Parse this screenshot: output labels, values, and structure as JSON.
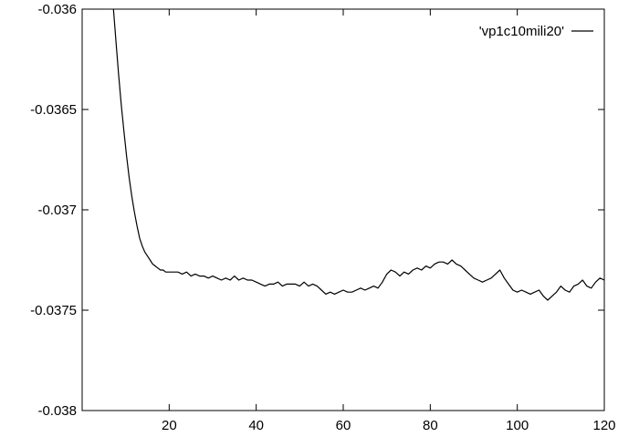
{
  "chart_data": {
    "type": "line",
    "xlim": [
      0,
      120
    ],
    "ylim": [
      -0.038,
      -0.036
    ],
    "x_ticks": [
      "20",
      "40",
      "60",
      "80",
      "100",
      "120"
    ],
    "x_tick_values": [
      20,
      40,
      60,
      80,
      100,
      120
    ],
    "y_ticks": [
      "-0.036",
      "-0.0365",
      "-0.037",
      "-0.0375",
      "-0.038"
    ],
    "y_tick_values": [
      -0.036,
      -0.0365,
      -0.037,
      -0.0375,
      -0.038
    ],
    "grid": false,
    "legend_position": "top-right",
    "series": [
      {
        "name": "'vp1c10mili20'",
        "color": "#000000",
        "x": [
          7.2,
          7.8,
          8.4,
          9.0,
          9.6,
          10.2,
          10.8,
          11.4,
          12.0,
          12.6,
          13.2,
          13.8,
          14.4,
          15.0,
          15.6,
          16.2,
          16.8,
          17.4,
          18.0,
          18.6,
          19.2,
          19.8,
          21.0,
          22.0,
          23.0,
          24.0,
          25.0,
          26.0,
          27.0,
          28.0,
          29.0,
          30.0,
          31.0,
          32.0,
          33.0,
          34.0,
          35.0,
          36.0,
          37.0,
          38.0,
          39.0,
          40.0,
          41.0,
          42.0,
          43.0,
          44.0,
          45.0,
          46.0,
          47.0,
          48.0,
          49.0,
          50.0,
          51.0,
          52.0,
          53.0,
          54.0,
          55.0,
          56.0,
          57.0,
          58.0,
          59.0,
          60.0,
          61.0,
          62.0,
          63.0,
          64.0,
          65.0,
          66.0,
          67.0,
          68.0,
          69.0,
          70.0,
          71.0,
          72.0,
          73.0,
          74.0,
          75.0,
          76.0,
          77.0,
          78.0,
          79.0,
          80.0,
          81.0,
          82.0,
          83.0,
          84.0,
          85.0,
          86.0,
          87.0,
          88.0,
          89.0,
          90.0,
          91.0,
          92.0,
          93.0,
          94.0,
          95.0,
          96.0,
          97.0,
          98.0,
          99.0,
          100.0,
          101.0,
          102.0,
          103.0,
          104.0,
          105.0,
          106.0,
          107.0,
          108.0,
          109.0,
          110.0,
          111.0,
          112.0,
          113.0,
          114.0,
          115.0,
          116.0,
          117.0,
          118.0,
          119.0,
          120.0
        ],
        "y": [
          -0.036,
          -0.03617,
          -0.03633,
          -0.03648,
          -0.03661,
          -0.03673,
          -0.03684,
          -0.03693,
          -0.03701,
          -0.03708,
          -0.03714,
          -0.03718,
          -0.03721,
          -0.03723,
          -0.03725,
          -0.03727,
          -0.03728,
          -0.03729,
          -0.0373,
          -0.0373,
          -0.03731,
          -0.03731,
          -0.03731,
          -0.03731,
          -0.03732,
          -0.03731,
          -0.03733,
          -0.03732,
          -0.03733,
          -0.03733,
          -0.03734,
          -0.03733,
          -0.03734,
          -0.03735,
          -0.03734,
          -0.03735,
          -0.03733,
          -0.03735,
          -0.03734,
          -0.03735,
          -0.03735,
          -0.03736,
          -0.03737,
          -0.03738,
          -0.03737,
          -0.03737,
          -0.03736,
          -0.03738,
          -0.03737,
          -0.03737,
          -0.03737,
          -0.03738,
          -0.03736,
          -0.03738,
          -0.03737,
          -0.03738,
          -0.0374,
          -0.03742,
          -0.03741,
          -0.03742,
          -0.03741,
          -0.0374,
          -0.03741,
          -0.03741,
          -0.0374,
          -0.03739,
          -0.0374,
          -0.03739,
          -0.03738,
          -0.03739,
          -0.03736,
          -0.03732,
          -0.0373,
          -0.03731,
          -0.03733,
          -0.03731,
          -0.03732,
          -0.0373,
          -0.03729,
          -0.0373,
          -0.03728,
          -0.03729,
          -0.03727,
          -0.03726,
          -0.03726,
          -0.03727,
          -0.03725,
          -0.03727,
          -0.03728,
          -0.0373,
          -0.03732,
          -0.03734,
          -0.03735,
          -0.03736,
          -0.03735,
          -0.03734,
          -0.03732,
          -0.0373,
          -0.03734,
          -0.03737,
          -0.0374,
          -0.03741,
          -0.0374,
          -0.03741,
          -0.03742,
          -0.03741,
          -0.0374,
          -0.03743,
          -0.03745,
          -0.03743,
          -0.03741,
          -0.03738,
          -0.0374,
          -0.03741,
          -0.03738,
          -0.03737,
          -0.03735,
          -0.03738,
          -0.03739,
          -0.03736,
          -0.03734,
          -0.03735
        ]
      }
    ]
  }
}
